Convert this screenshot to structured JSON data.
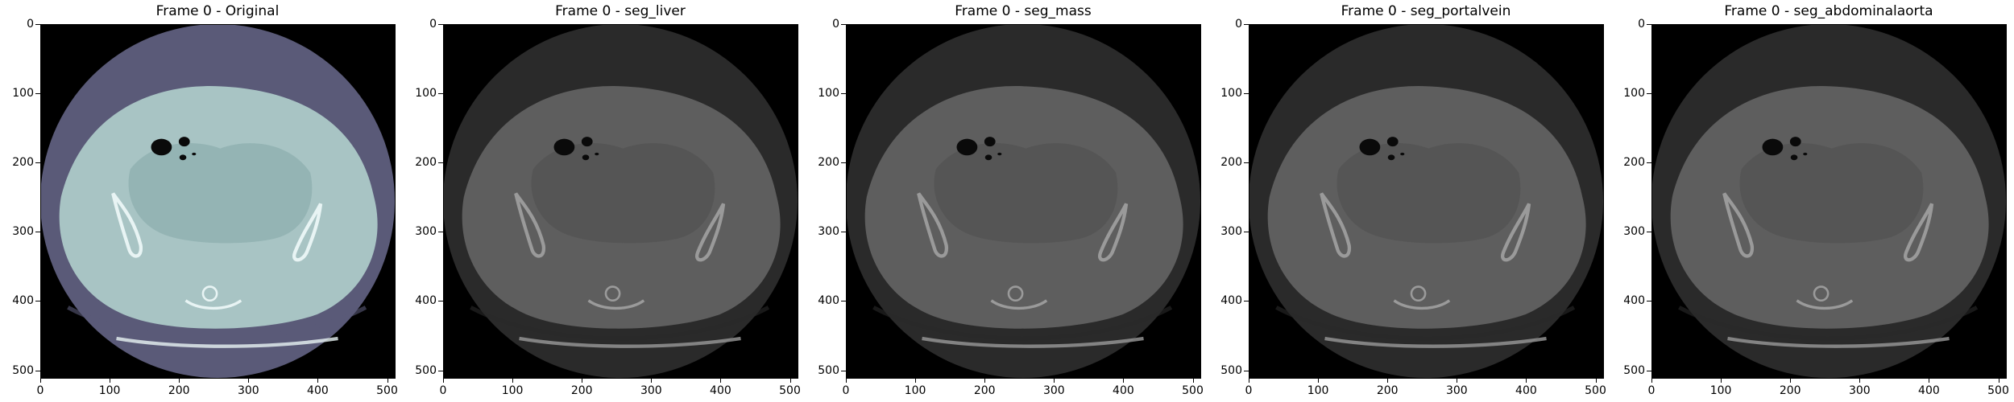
{
  "panels": [
    {
      "title": "Frame 0 - Original",
      "colormap": "bone"
    },
    {
      "title": "Frame 0 - seg_liver",
      "colormap": "gray"
    },
    {
      "title": "Frame 0 - seg_mass",
      "colormap": "gray"
    },
    {
      "title": "Frame 0 - seg_portalvein",
      "colormap": "gray"
    },
    {
      "title": "Frame 0 - seg_abdominalaorta",
      "colormap": "gray"
    }
  ],
  "axis": {
    "range": [
      0,
      511
    ],
    "x_ticks": [
      "0",
      "100",
      "200",
      "300",
      "400",
      "500"
    ],
    "y_ticks": [
      "0",
      "100",
      "200",
      "300",
      "400",
      "500"
    ]
  },
  "colors": {
    "bone_outer": "#5a5a78",
    "bone_body": "#a8c4c4",
    "bone_bowel": "#8fb0b0",
    "bone_bright": "#e8f4f4",
    "gray_outer": "#2a2a2a",
    "gray_body": "#5e5e5e",
    "gray_bowel": "#525252",
    "gray_bright": "#9a9a9a",
    "air": "#0a0a0a"
  }
}
